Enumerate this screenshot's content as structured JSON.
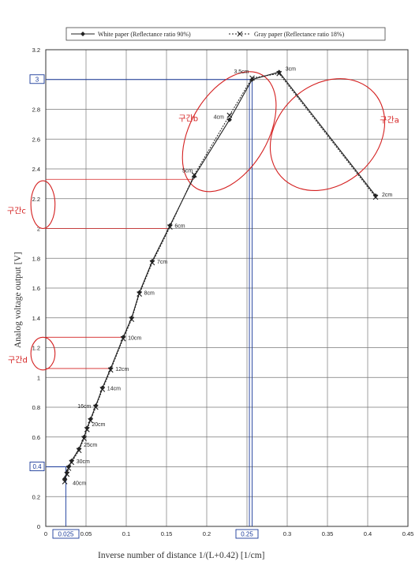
{
  "chart_data": {
    "type": "line",
    "xlabel": "Inverse number of distance     1/(L+0.42)  [1/cm]",
    "ylabel": "Analog voltage output [V]",
    "xlim": [
      0,
      0.45
    ],
    "ylim": [
      0,
      3.2
    ],
    "x_ticks": [
      "0",
      "0.05",
      "0.1",
      "0.15",
      "0.2",
      "0.25",
      "0.3",
      "0.35",
      "0.4",
      "0.45"
    ],
    "y_ticks": [
      "0",
      "0.2",
      "0.4",
      "0.6",
      "0.8",
      "1",
      "1.2",
      "1.4",
      "1.6",
      "1.8",
      "2",
      "2.2",
      "2.4",
      "2.6",
      "2.8",
      "3",
      "3.2"
    ],
    "grid": true,
    "legend_position": "top",
    "series": [
      {
        "name": "White paper (Reflectance ratio 90%)",
        "color": "#222222",
        "marker": "diamond",
        "line_style": "solid",
        "x": [
          0.0236,
          0.0263,
          0.0284,
          0.0321,
          0.0413,
          0.0476,
          0.0513,
          0.0556,
          0.0621,
          0.0704,
          0.0806,
          0.0962,
          0.1067,
          0.1163,
          0.1323,
          0.1543,
          0.1845,
          0.2283,
          0.2564,
          0.2899,
          0.4098
        ],
        "y": [
          0.32,
          0.36,
          0.4,
          0.44,
          0.52,
          0.6,
          0.66,
          0.72,
          0.81,
          0.93,
          1.06,
          1.27,
          1.4,
          1.57,
          1.78,
          2.02,
          2.35,
          2.73,
          3.0,
          3.05,
          2.22
        ]
      },
      {
        "name": "Gray paper (Reflectance ratio 18%)",
        "color": "#222222",
        "marker": "x",
        "line_style": "dotted",
        "x": [
          0.0236,
          0.0263,
          0.0284,
          0.0321,
          0.0413,
          0.0476,
          0.0513,
          0.0556,
          0.0621,
          0.0704,
          0.0806,
          0.0962,
          0.1067,
          0.1163,
          0.1323,
          0.1543,
          0.1845,
          0.2283,
          0.2564,
          0.2899,
          0.4098
        ],
        "y": [
          0.3,
          0.35,
          0.39,
          0.43,
          0.51,
          0.59,
          0.65,
          0.71,
          0.8,
          0.92,
          1.05,
          1.26,
          1.39,
          1.56,
          1.77,
          2.01,
          2.36,
          2.76,
          3.01,
          3.04,
          2.21
        ]
      }
    ],
    "point_labels": [
      {
        "text": "40cm",
        "x": 0.0236,
        "y": 0.32
      },
      {
        "text": "30cm",
        "x": 0.0321,
        "y": 0.44
      },
      {
        "text": "25cm",
        "x": 0.0413,
        "y": 0.55
      },
      {
        "text": "20cm",
        "x": 0.0513,
        "y": 0.69
      },
      {
        "text": "16cm",
        "x": 0.0621,
        "y": 0.81
      },
      {
        "text": "14cm",
        "x": 0.0704,
        "y": 0.93
      },
      {
        "text": "12cm",
        "x": 0.0806,
        "y": 1.06
      },
      {
        "text": "10cm",
        "x": 0.0962,
        "y": 1.27
      },
      {
        "text": "8cm",
        "x": 0.1163,
        "y": 1.57
      },
      {
        "text": "7cm",
        "x": 0.1323,
        "y": 1.78
      },
      {
        "text": "6cm",
        "x": 0.1543,
        "y": 2.02
      },
      {
        "text": "5cm",
        "x": 0.1845,
        "y": 2.35
      },
      {
        "text": "4cm",
        "x": 0.2283,
        "y": 2.73
      },
      {
        "text": "3.5cm",
        "x": 0.2564,
        "y": 3.0
      },
      {
        "text": "3cm",
        "x": 0.2899,
        "y": 3.05
      },
      {
        "text": "2cm",
        "x": 0.4098,
        "y": 2.22
      }
    ],
    "annotations": {
      "color": "#d42020",
      "reference_color": "#1a3a9a",
      "regions": [
        {
          "label": "구간a",
          "center": [
            0.35,
            2.63
          ],
          "x_radius": 0.062,
          "y_radius": 0.42,
          "angle": 48,
          "label_at": [
            0.415,
            2.71
          ]
        },
        {
          "label": "구간b",
          "center": [
            0.228,
            2.65
          ],
          "x_radius": 0.048,
          "y_radius": 0.44,
          "angle": 30,
          "label_at": [
            0.165,
            2.72
          ]
        },
        {
          "label": "구간c",
          "center": [
            -0.0035,
            2.16
          ],
          "x_radius": 0.015,
          "y_radius": 0.16,
          "angle": 0,
          "label_at": [
            -0.048,
            2.1
          ]
        },
        {
          "label": "구간d",
          "center": [
            -0.0035,
            1.16
          ],
          "x_radius": 0.015,
          "y_radius": 0.11,
          "angle": 0,
          "label_at": [
            -0.047,
            1.1
          ]
        }
      ],
      "reference_lines": [
        {
          "from": [
            0.0,
            2.33
          ],
          "to": [
            0.184,
            2.33
          ]
        },
        {
          "from": [
            0.0,
            2.0
          ],
          "to": [
            0.154,
            2.0
          ]
        },
        {
          "from": [
            0.0,
            1.27
          ],
          "to": [
            0.096,
            1.27
          ]
        },
        {
          "from": [
            0.0,
            1.06
          ],
          "to": [
            0.0806,
            1.06
          ]
        }
      ],
      "highlight_lines": [
        {
          "from": [
            0.0,
            3.0
          ],
          "to": [
            0.2564,
            3.0
          ]
        },
        {
          "from": [
            0.0,
            0.4
          ],
          "to": [
            0.025,
            0.4
          ]
        },
        {
          "from": [
            0.025,
            0.0
          ],
          "to": [
            0.025,
            0.4
          ]
        },
        {
          "from": [
            0.2564,
            0.0
          ],
          "to": [
            0.2564,
            3.0
          ]
        },
        {
          "from": [
            0.253,
            0.0
          ],
          "to": [
            0.253,
            2.98
          ]
        }
      ],
      "boxed_ticks": [
        {
          "axis": "y",
          "text": "3",
          "value": 3.0
        },
        {
          "axis": "y",
          "text": "0.4",
          "value": 0.4
        },
        {
          "axis": "x",
          "text": "0.025",
          "value": 0.025
        },
        {
          "axis": "x",
          "text": "0.25",
          "value": 0.25
        }
      ]
    }
  }
}
